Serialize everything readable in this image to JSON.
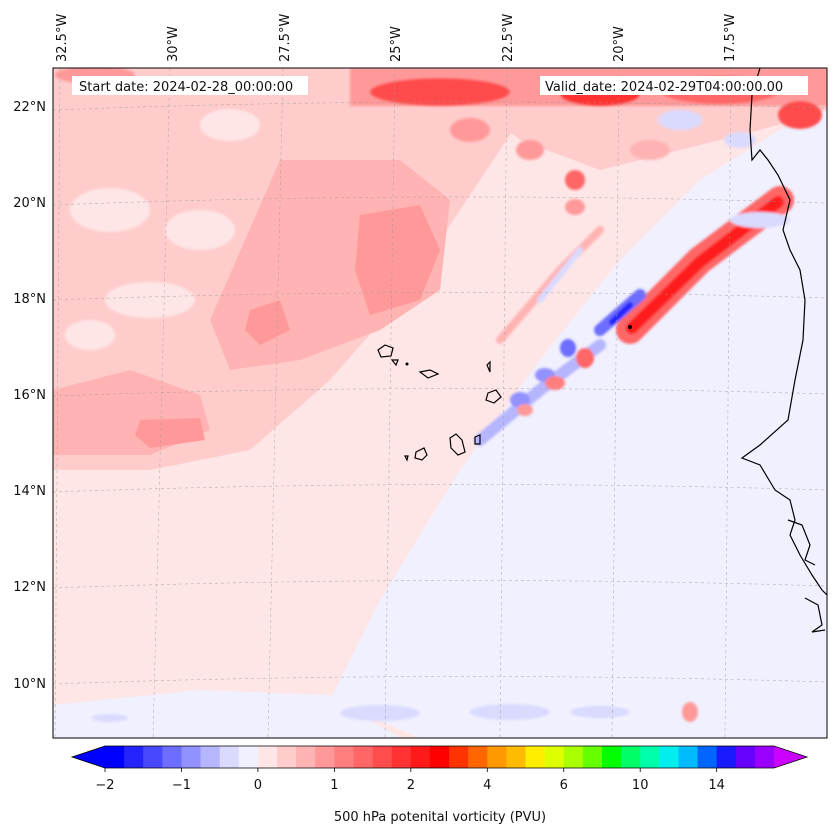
{
  "map": {
    "start_label": "Start date: 2024-02-28_00:00:00",
    "valid_label": "Valid_date: 2024-02-29T04:00:00.00",
    "lon_labels": [
      "32.5°W",
      "30°W",
      "27.5°W",
      "25°W",
      "22.5°W",
      "20°W",
      "17.5°W"
    ],
    "lat_labels": [
      "22°N",
      "20°N",
      "18°N",
      "16°N",
      "14°N",
      "12°N",
      "10°N"
    ],
    "variable": "500 hPa potential vorticity",
    "units": "PVU"
  },
  "colorbar": {
    "title": "500 hPa potenital vorticity (PVU)",
    "tick_labels": [
      "−2",
      "−1",
      "0",
      "1",
      "2",
      "4",
      "6",
      "10",
      "14"
    ],
    "colors": [
      "#0000ff",
      "#2424ff",
      "#4848ff",
      "#6d6dff",
      "#9191ff",
      "#b6b6ff",
      "#dadaff",
      "#f0f0ff",
      "#ffe6e6",
      "#ffcccc",
      "#ffb3b3",
      "#ff9999",
      "#ff7f7f",
      "#ff6666",
      "#ff4c4c",
      "#ff3333",
      "#ff1a1a",
      "#ff0000",
      "#ff3300",
      "#ff6600",
      "#ff9900",
      "#ffbb00",
      "#ffee00",
      "#ddff00",
      "#aaff00",
      "#66ff00",
      "#00ff00",
      "#00ff66",
      "#00ffaa",
      "#00eeee",
      "#00bbff",
      "#0066ff",
      "#1a1aff",
      "#6600ff",
      "#9900ff"
    ],
    "under_color": "#0000ff",
    "over_color": "#cc00ff"
  }
}
